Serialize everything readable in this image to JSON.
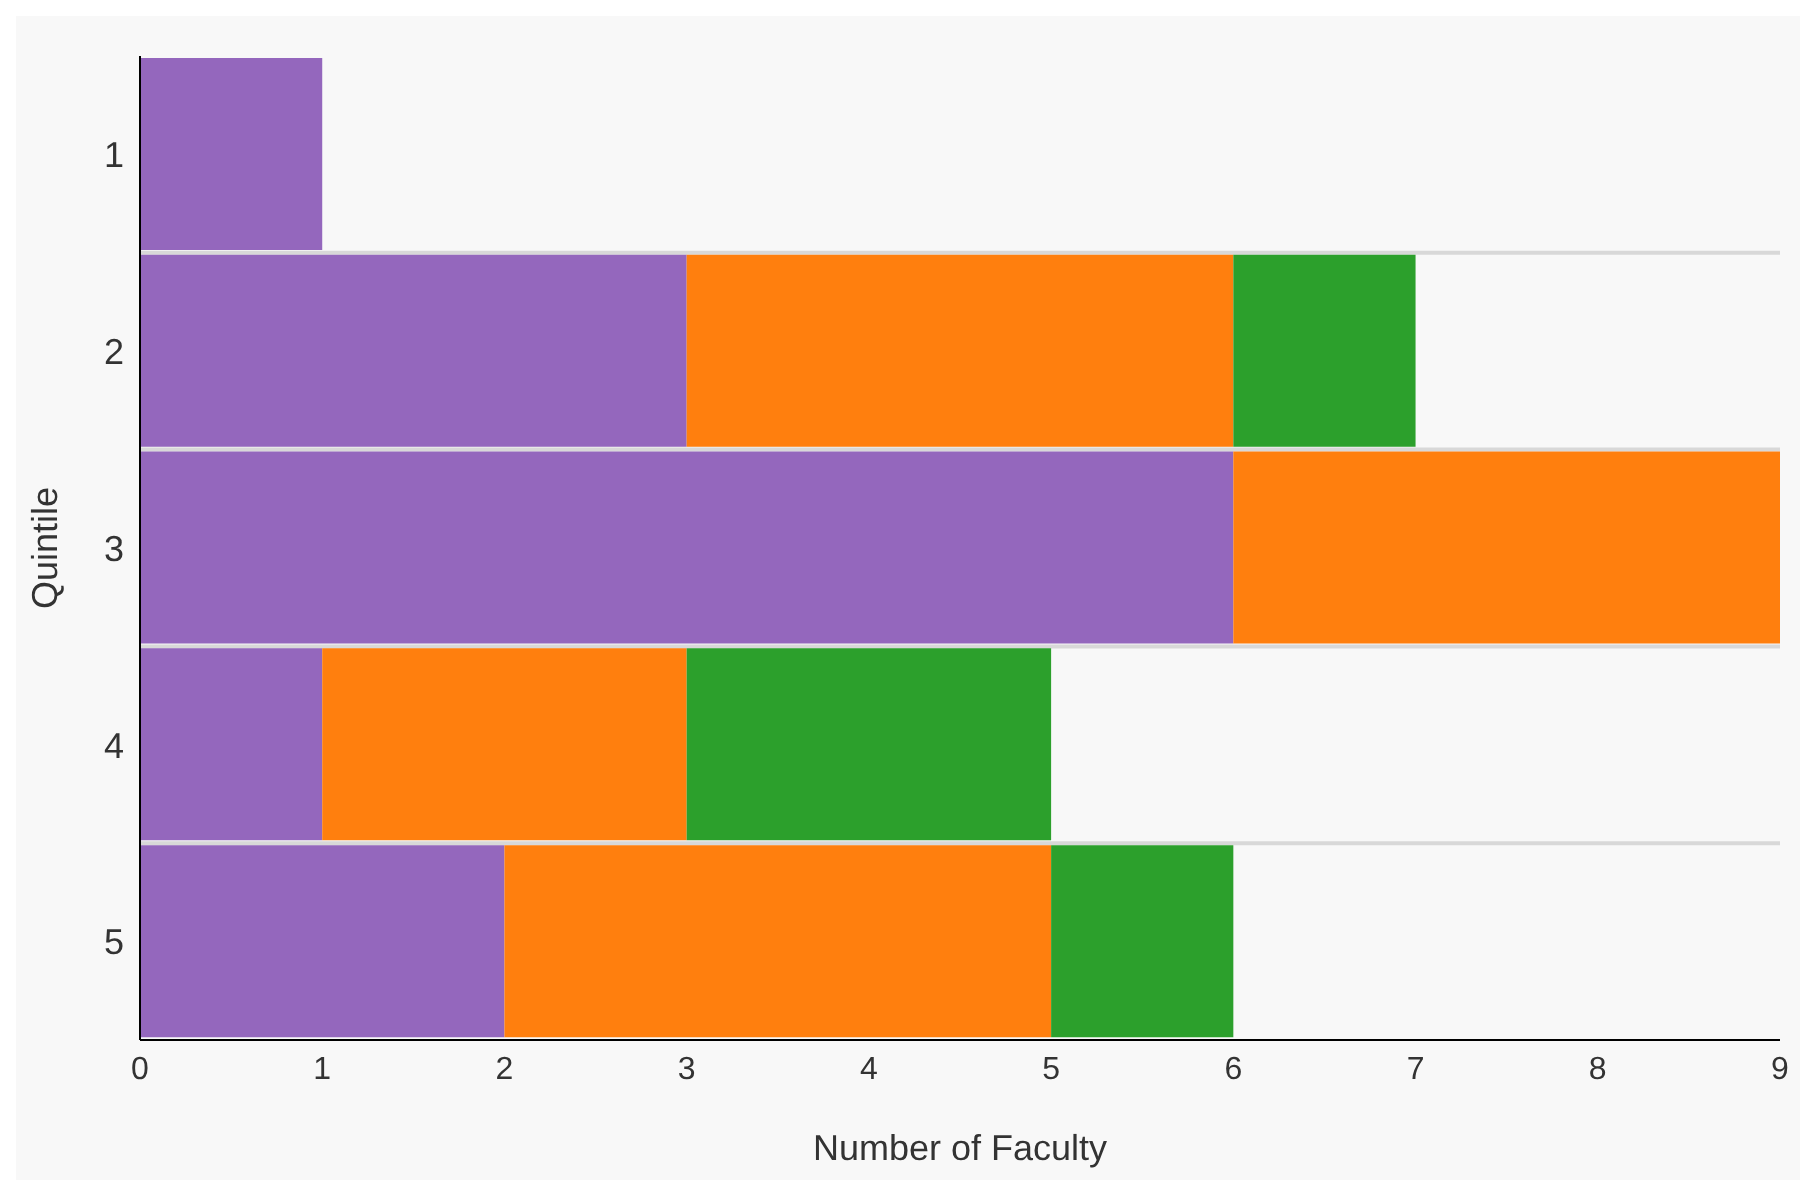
{
  "chart_data": {
    "type": "bar",
    "orientation": "horizontal",
    "stacked": true,
    "xlabel": "Number of Faculty",
    "ylabel": "Quintile",
    "categories": [
      "1",
      "2",
      "3",
      "4",
      "5"
    ],
    "series": [
      {
        "color": "#9467bd",
        "values": [
          1,
          3,
          6,
          1,
          2
        ]
      },
      {
        "color": "#ff7f0e",
        "values": [
          null,
          3,
          3,
          2,
          3
        ]
      },
      {
        "color": "#2ca02c",
        "values": [
          null,
          1,
          null,
          2,
          1
        ]
      }
    ],
    "xlim": [
      0,
      9
    ],
    "xticks": [
      0,
      1,
      2,
      3,
      4,
      5,
      6,
      7,
      8,
      9
    ],
    "grid": "y",
    "legend": false
  }
}
